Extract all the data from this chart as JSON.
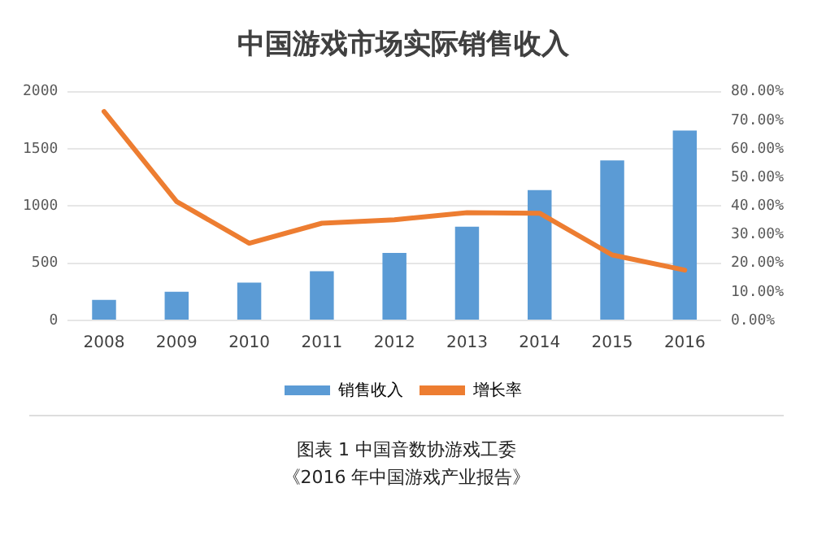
{
  "chart_data": {
    "type": "bar",
    "title": "中国游戏市场实际销售收入",
    "categories": [
      "2008",
      "2009",
      "2010",
      "2011",
      "2012",
      "2013",
      "2014",
      "2015",
      "2016"
    ],
    "series": [
      {
        "name": "销售收入",
        "color": "#5b9bd5",
        "values": [
          180,
          250,
          330,
          430,
          590,
          820,
          1140,
          1400,
          1660
        ]
      },
      {
        "name": "增长率",
        "type": "line",
        "axis": "y2",
        "color": "#ed7d31",
        "values": [
          73.1,
          41.6,
          27,
          34,
          35.2,
          37.7,
          37.5,
          22.9,
          17.6
        ]
      }
    ],
    "ylim": [
      0,
      2000
    ],
    "yticks": [
      0,
      500,
      1000,
      1500,
      2000
    ],
    "y2lim": [
      0,
      80
    ],
    "y2ticks": [
      {
        "value": 0,
        "label": "0.00%"
      },
      {
        "value": 10,
        "label": "10.00%"
      },
      {
        "value": 20,
        "label": "20.00%"
      },
      {
        "value": 30,
        "label": "30.00%"
      },
      {
        "value": 40,
        "label": "40.00%"
      },
      {
        "value": 50,
        "label": "50.00%"
      },
      {
        "value": 60,
        "label": "60.00%"
      },
      {
        "value": 70,
        "label": "70.00%"
      },
      {
        "value": 80,
        "label": "80.00%"
      }
    ],
    "grid": "y",
    "legend": "bottom",
    "marker": "none",
    "line_style": "solid",
    "annotations": [
      "图表 1 中国音数协游戏工委",
      "《2016 年中国游戏产业报告》"
    ]
  }
}
